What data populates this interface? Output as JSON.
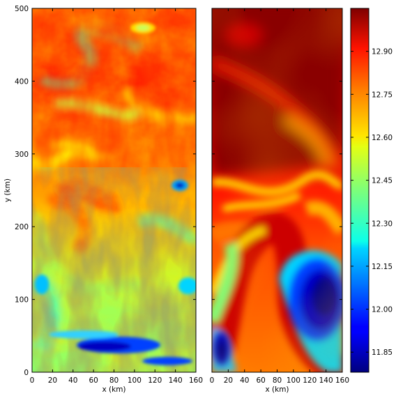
{
  "chart_data": [
    {
      "type": "heatmap",
      "panel": "left",
      "xlabel": "x (km)",
      "ylabel": "y (km)",
      "xlim": [
        0,
        160
      ],
      "ylim": [
        0,
        500
      ],
      "x_ticks": [
        "0",
        "20",
        "40",
        "60",
        "80",
        "100",
        "120",
        "140",
        "160"
      ],
      "y_ticks": [
        "0",
        "100",
        "200",
        "300",
        "400",
        "500"
      ],
      "colormap": "jet",
      "field_description": "small-scale turbulent filaments; warm (red) values dominate above y=300, mixed green/yellow below with blue patches near y=30 and y=260",
      "features": [
        {
          "x": 80,
          "y": 35,
          "value": 11.9,
          "label": "blue band"
        },
        {
          "x": 148,
          "y": 258,
          "value": 12.1,
          "label": "blue patch"
        },
        {
          "x": 105,
          "y": 470,
          "value": 12.6,
          "label": "yellow eddy"
        }
      ]
    },
    {
      "type": "heatmap",
      "panel": "right",
      "xlabel": "x (km)",
      "xlim": [
        0,
        160
      ],
      "ylim": [
        0,
        500
      ],
      "x_ticks": [
        "0",
        "20",
        "40",
        "60",
        "80",
        "100",
        "120",
        "140",
        "160"
      ],
      "colormap": "jet",
      "field_description": "large smooth structures; dark red above y=310, S-shaped red filament, deep blue eddy at lower right",
      "features": [
        {
          "x": 115,
          "y": 100,
          "value": 11.8,
          "label": "dark blue eddy"
        },
        {
          "x": 10,
          "y": 40,
          "value": 11.95,
          "label": "blue corner"
        },
        {
          "x": 70,
          "y": 420,
          "value": 13.0,
          "label": "dark red region"
        }
      ]
    }
  ],
  "colorbar": {
    "vmin": 11.78,
    "vmax": 13.05,
    "ticks": [
      "11.85",
      "12.00",
      "12.15",
      "12.30",
      "12.45",
      "12.60",
      "12.75",
      "12.90"
    ],
    "tick_values": [
      11.85,
      12.0,
      12.15,
      12.3,
      12.45,
      12.6,
      12.75,
      12.9
    ]
  }
}
